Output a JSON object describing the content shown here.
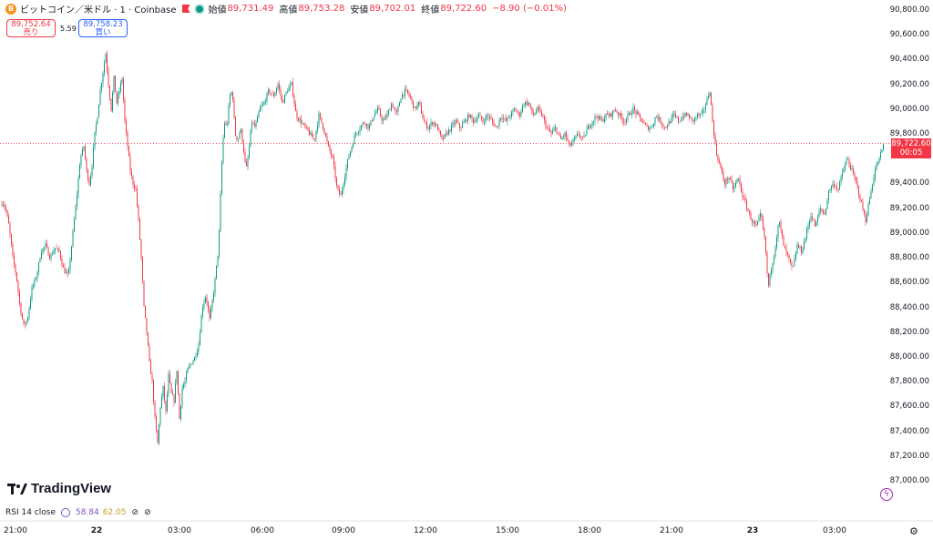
{
  "header": {
    "coin_symbol": "B",
    "title": "ビットコイン／米ドル · 1 · Coinbase",
    "open_label": "始値",
    "open": "89,731.49",
    "high_label": "高値",
    "high": "89,753.28",
    "low_label": "安値",
    "low": "89,702.01",
    "close_label": "終値",
    "close": "89,722.60",
    "change": "−8.90 (−0.01%)"
  },
  "quote": {
    "sell_price": "89,752.64",
    "sell_label": "売り",
    "spread": "5.59",
    "buy_price": "89,758.23",
    "buy_label": "買い"
  },
  "price_tag": {
    "price": "89,722.60",
    "countdown": "00:05"
  },
  "colors": {
    "up": "#089981",
    "down": "#f23645",
    "price_line": "#f23645"
  },
  "logo": {
    "text": "TradingView"
  },
  "rsi": {
    "label": "RSI 14 close",
    "value1": "58.84",
    "value2": "62.05"
  },
  "chart_data": {
    "type": "candlestick",
    "y_axis": {
      "ticks": [
        "90,800.00",
        "90,600.00",
        "90,400.00",
        "90,200.00",
        "90,000.00",
        "89,800.00",
        "89,400.00",
        "89,200.00",
        "89,000.00",
        "88,800.00",
        "88,600.00",
        "88,400.00",
        "88,200.00",
        "88,000.00",
        "87,800.00",
        "87,600.00",
        "87,400.00",
        "87,200.00",
        "87,000.00"
      ],
      "values": [
        90800,
        90600,
        90400,
        90200,
        90000,
        89800,
        89400,
        89200,
        89000,
        88800,
        88600,
        88400,
        88200,
        88000,
        87800,
        87600,
        87400,
        87200,
        87000
      ],
      "range": [
        86930,
        90900
      ]
    },
    "x_axis": {
      "ticks": [
        "21:00",
        "22",
        "03:00",
        "06:00",
        "09:00",
        "12:00",
        "15:00",
        "18:00",
        "21:00",
        "23",
        "03:00"
      ],
      "bold": [
        false,
        true,
        false,
        false,
        false,
        false,
        false,
        false,
        false,
        true,
        false
      ]
    },
    "current_price": 89722.6,
    "close_path": [
      [
        0,
        89230
      ],
      [
        3,
        89250
      ],
      [
        6,
        89200
      ],
      [
        10,
        89050
      ],
      [
        14,
        88800
      ],
      [
        18,
        88650
      ],
      [
        22,
        88400
      ],
      [
        26,
        88250
      ],
      [
        30,
        88300
      ],
      [
        35,
        88550
      ],
      [
        40,
        88650
      ],
      [
        45,
        88850
      ],
      [
        50,
        88900
      ],
      [
        55,
        88800
      ],
      [
        60,
        88880
      ],
      [
        65,
        88850
      ],
      [
        70,
        88700
      ],
      [
        75,
        88650
      ],
      [
        80,
        89000
      ],
      [
        85,
        89350
      ],
      [
        88,
        89600
      ],
      [
        92,
        89700
      ],
      [
        95,
        89500
      ],
      [
        98,
        89400
      ],
      [
        101,
        89550
      ],
      [
        104,
        89800
      ],
      [
        107,
        89950
      ],
      [
        110,
        90150
      ],
      [
        113,
        90300
      ],
      [
        116,
        90450
      ],
      [
        119,
        90200
      ],
      [
        122,
        90000
      ],
      [
        125,
        90250
      ],
      [
        128,
        90050
      ],
      [
        131,
        90150
      ],
      [
        134,
        90250
      ],
      [
        137,
        89900
      ],
      [
        140,
        89700
      ],
      [
        143,
        89500
      ],
      [
        146,
        89400
      ],
      [
        149,
        89350
      ],
      [
        152,
        89100
      ],
      [
        155,
        88800
      ],
      [
        158,
        88400
      ],
      [
        161,
        88200
      ],
      [
        164,
        87950
      ],
      [
        167,
        87800
      ],
      [
        170,
        87500
      ],
      [
        173,
        87300
      ],
      [
        176,
        87600
      ],
      [
        179,
        87750
      ],
      [
        182,
        87550
      ],
      [
        185,
        87850
      ],
      [
        188,
        87700
      ],
      [
        191,
        87650
      ],
      [
        194,
        87900
      ],
      [
        197,
        87500
      ],
      [
        200,
        87750
      ],
      [
        203,
        87800
      ],
      [
        206,
        87900
      ],
      [
        210,
        87950
      ],
      [
        214,
        88000
      ],
      [
        218,
        88100
      ],
      [
        222,
        88400
      ],
      [
        226,
        88500
      ],
      [
        230,
        88300
      ],
      [
        235,
        88550
      ],
      [
        240,
        88900
      ],
      [
        243,
        89500
      ],
      [
        246,
        89900
      ],
      [
        249,
        89850
      ],
      [
        252,
        90100
      ],
      [
        255,
        90150
      ],
      [
        258,
        89800
      ],
      [
        261,
        89750
      ],
      [
        264,
        89850
      ],
      [
        267,
        89700
      ],
      [
        270,
        89500
      ],
      [
        273,
        89650
      ],
      [
        276,
        89900
      ],
      [
        280,
        89850
      ],
      [
        285,
        90000
      ],
      [
        290,
        90050
      ],
      [
        295,
        90150
      ],
      [
        300,
        90100
      ],
      [
        305,
        90200
      ],
      [
        310,
        90050
      ],
      [
        315,
        90150
      ],
      [
        320,
        90200
      ],
      [
        325,
        89950
      ],
      [
        330,
        89900
      ],
      [
        335,
        89850
      ],
      [
        340,
        89800
      ],
      [
        345,
        89750
      ],
      [
        350,
        89950
      ],
      [
        355,
        89850
      ],
      [
        360,
        89700
      ],
      [
        365,
        89600
      ],
      [
        370,
        89350
      ],
      [
        374,
        89300
      ],
      [
        378,
        89450
      ],
      [
        382,
        89600
      ],
      [
        386,
        89700
      ],
      [
        390,
        89800
      ],
      [
        395,
        89850
      ],
      [
        400,
        89900
      ],
      [
        405,
        89850
      ],
      [
        410,
        89950
      ],
      [
        415,
        90000
      ],
      [
        420,
        89900
      ],
      [
        425,
        89950
      ],
      [
        430,
        90050
      ],
      [
        435,
        89950
      ],
      [
        440,
        90100
      ],
      [
        445,
        90150
      ],
      [
        450,
        90100
      ],
      [
        455,
        90000
      ],
      [
        460,
        90050
      ],
      [
        465,
        89900
      ],
      [
        470,
        89850
      ],
      [
        475,
        89900
      ],
      [
        480,
        89850
      ],
      [
        485,
        89750
      ],
      [
        490,
        89800
      ],
      [
        495,
        89850
      ],
      [
        500,
        89900
      ],
      [
        505,
        89850
      ],
      [
        510,
        89900
      ],
      [
        515,
        89950
      ],
      [
        520,
        89900
      ],
      [
        525,
        89950
      ],
      [
        530,
        89900
      ],
      [
        535,
        89950
      ],
      [
        540,
        89900
      ],
      [
        545,
        89850
      ],
      [
        550,
        89950
      ],
      [
        555,
        89900
      ],
      [
        560,
        89950
      ],
      [
        565,
        90000
      ],
      [
        570,
        89950
      ],
      [
        575,
        90050
      ],
      [
        580,
        90050
      ],
      [
        585,
        89950
      ],
      [
        590,
        90000
      ],
      [
        595,
        89950
      ],
      [
        600,
        89850
      ],
      [
        605,
        89800
      ],
      [
        610,
        89850
      ],
      [
        615,
        89750
      ],
      [
        620,
        89800
      ],
      [
        625,
        89700
      ],
      [
        630,
        89750
      ],
      [
        635,
        89800
      ],
      [
        640,
        89750
      ],
      [
        645,
        89850
      ],
      [
        650,
        89900
      ],
      [
        655,
        89950
      ],
      [
        660,
        89900
      ],
      [
        665,
        89950
      ],
      [
        670,
        89950
      ],
      [
        675,
        90000
      ],
      [
        680,
        89950
      ],
      [
        685,
        89900
      ],
      [
        690,
        89950
      ],
      [
        695,
        90000
      ],
      [
        700,
        89950
      ],
      [
        705,
        89900
      ],
      [
        710,
        89850
      ],
      [
        715,
        89850
      ],
      [
        720,
        89950
      ],
      [
        725,
        89900
      ],
      [
        730,
        89850
      ],
      [
        735,
        89900
      ],
      [
        740,
        89950
      ],
      [
        745,
        89900
      ],
      [
        750,
        89950
      ],
      [
        755,
        89950
      ],
      [
        760,
        89900
      ],
      [
        765,
        89950
      ],
      [
        770,
        89950
      ],
      [
        775,
        90050
      ],
      [
        779,
        90150
      ],
      [
        782,
        89900
      ],
      [
        786,
        89650
      ],
      [
        790,
        89550
      ],
      [
        795,
        89400
      ],
      [
        800,
        89450
      ],
      [
        805,
        89350
      ],
      [
        810,
        89450
      ],
      [
        815,
        89300
      ],
      [
        820,
        89200
      ],
      [
        825,
        89100
      ],
      [
        830,
        89050
      ],
      [
        835,
        89150
      ],
      [
        840,
        88900
      ],
      [
        843,
        88550
      ],
      [
        846,
        88700
      ],
      [
        850,
        88850
      ],
      [
        855,
        89100
      ],
      [
        860,
        88900
      ],
      [
        865,
        88800
      ],
      [
        870,
        88700
      ],
      [
        875,
        88900
      ],
      [
        880,
        88850
      ],
      [
        885,
        89000
      ],
      [
        890,
        89150
      ],
      [
        895,
        89050
      ],
      [
        900,
        89200
      ],
      [
        905,
        89150
      ],
      [
        910,
        89350
      ],
      [
        915,
        89400
      ],
      [
        920,
        89350
      ],
      [
        925,
        89500
      ],
      [
        930,
        89600
      ],
      [
        935,
        89500
      ],
      [
        940,
        89400
      ],
      [
        945,
        89250
      ],
      [
        950,
        89100
      ],
      [
        955,
        89300
      ],
      [
        960,
        89500
      ],
      [
        965,
        89600
      ],
      [
        970,
        89722.6
      ]
    ]
  }
}
